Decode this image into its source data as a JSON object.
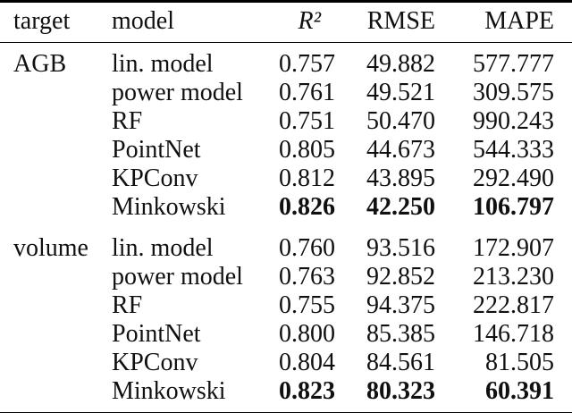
{
  "page": {
    "background_color": "#ffffff",
    "text_color": "#101010",
    "rule_color": "#000000"
  },
  "table": {
    "columns": [
      {
        "key": "target",
        "label": "target"
      },
      {
        "key": "model",
        "label": "model"
      },
      {
        "key": "r2",
        "label": "R²"
      },
      {
        "key": "rmse",
        "label": "RMSE"
      },
      {
        "key": "mape",
        "label": "MAPE"
      }
    ],
    "rows": [
      {
        "target": "AGB",
        "model": "lin. model",
        "r2": "0.757",
        "rmse": "49.882",
        "mape": "577.777",
        "emphasis": false
      },
      {
        "target": "",
        "model": "power model",
        "r2": "0.761",
        "rmse": "49.521",
        "mape": "309.575",
        "emphasis": false
      },
      {
        "target": "",
        "model": "RF",
        "r2": "0.751",
        "rmse": "50.470",
        "mape": "990.243",
        "emphasis": false
      },
      {
        "target": "",
        "model": "PointNet",
        "r2": "0.805",
        "rmse": "44.673",
        "mape": "544.333",
        "emphasis": false
      },
      {
        "target": "",
        "model": "KPConv",
        "r2": "0.812",
        "rmse": "43.895",
        "mape": "292.490",
        "emphasis": false
      },
      {
        "target": "",
        "model": "Minkowski",
        "r2": "0.826",
        "rmse": "42.250",
        "mape": "106.797",
        "emphasis": true
      },
      {
        "target": "volume",
        "model": "lin. model",
        "r2": "0.760",
        "rmse": "93.516",
        "mape": "172.907",
        "emphasis": false
      },
      {
        "target": "",
        "model": "power model",
        "r2": "0.763",
        "rmse": "92.852",
        "mape": "213.230",
        "emphasis": false
      },
      {
        "target": "",
        "model": "RF",
        "r2": "0.755",
        "rmse": "94.375",
        "mape": "222.817",
        "emphasis": false
      },
      {
        "target": "",
        "model": "PointNet",
        "r2": "0.800",
        "rmse": "85.385",
        "mape": "146.718",
        "emphasis": false
      },
      {
        "target": "",
        "model": "KPConv",
        "r2": "0.804",
        "rmse": "84.561",
        "mape": "81.505",
        "emphasis": false
      },
      {
        "target": "",
        "model": "Minkowski",
        "r2": "0.823",
        "rmse": "80.323",
        "mape": "60.391",
        "emphasis": true
      }
    ]
  }
}
